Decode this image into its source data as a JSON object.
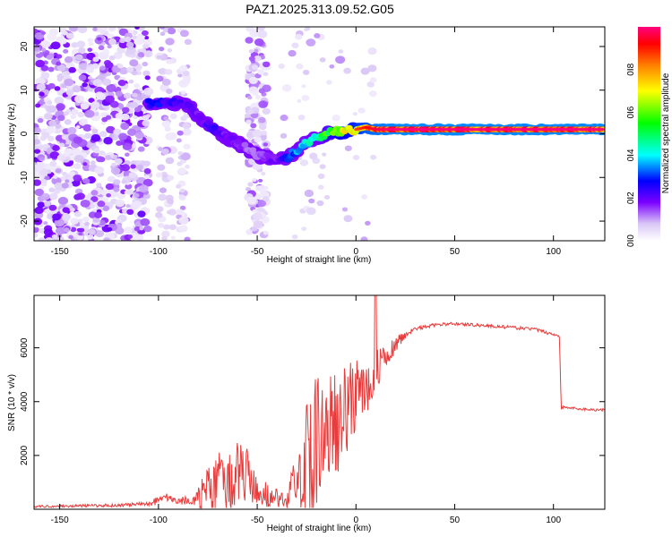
{
  "figure": {
    "title": "PAZ1.2025.313.09.52.G05"
  },
  "chart_data": [
    {
      "type": "heatmap",
      "title": "PAZ1.2025.313.09.52.G05",
      "xlabel": "Height of straight line (km)",
      "ylabel": "Frequency (Hz)",
      "xlim": [
        -163,
        126
      ],
      "ylim": [
        -24.5,
        24.5
      ],
      "x_ticks": [
        -150,
        -100,
        -50,
        0,
        50,
        100
      ],
      "y_ticks": [
        -20,
        -10,
        0,
        10,
        20
      ],
      "colorbar": {
        "label": "Normalized spectral amplitude",
        "range": [
          0,
          1
        ],
        "ticks": [
          0.0,
          0.2,
          0.4,
          0.6,
          0.8
        ],
        "tick_labels": [
          "0.0",
          "0.2",
          "0.4",
          "0.6",
          "0.8"
        ]
      },
      "ridge": {
        "x": [
          -105,
          -100,
          -95,
          -90,
          -85,
          -80,
          -75,
          -70,
          -65,
          -60,
          -55,
          -50,
          -45,
          -40,
          -35,
          -30,
          -25,
          -20,
          -15,
          -10,
          -5,
          0,
          5,
          10,
          20,
          40,
          60,
          80,
          100,
          126
        ],
        "y": [
          7,
          7,
          7,
          7,
          6.5,
          4,
          2,
          0.5,
          -1,
          -2,
          -3.5,
          -5,
          -5.5,
          -6,
          -5.5,
          -4,
          -2,
          -1,
          0,
          0.5,
          0.5,
          1,
          1.5,
          1,
          1,
          1,
          1,
          1,
          1,
          1
        ],
        "amplitude": [
          0.3,
          0.3,
          0.25,
          0.25,
          0.25,
          0.2,
          0.25,
          0.25,
          0.2,
          0.2,
          0.15,
          0.15,
          0.2,
          0.2,
          0.3,
          0.4,
          0.45,
          0.5,
          0.6,
          0.75,
          0.8,
          0.85,
          0.9,
          0.95,
          0.98,
          0.98,
          0.98,
          0.98,
          0.98,
          0.98
        ]
      }
    },
    {
      "type": "line",
      "xlabel": "Height of straight line (km)",
      "ylabel": "SNR (10 * v/v)",
      "xlim": [
        -163,
        126
      ],
      "ylim": [
        0,
        7950
      ],
      "x_ticks": [
        -150,
        -100,
        -50,
        0,
        50,
        100
      ],
      "y_ticks": [
        2000,
        4000,
        6000
      ],
      "series": [
        {
          "name": "SNR",
          "color": "#e83c3c",
          "x": [
            -163,
            -120,
            -105,
            -100,
            -98,
            -90,
            -80,
            -75,
            -70,
            -65,
            -60,
            -55,
            -50,
            -45,
            -40,
            -35,
            -32,
            -30,
            -25,
            -20,
            -15,
            -10,
            -5,
            0,
            5,
            10,
            15,
            20,
            25,
            30,
            40,
            50,
            60,
            70,
            80,
            90,
            100,
            103,
            104,
            105,
            110,
            120,
            126
          ],
          "y": [
            100,
            150,
            200,
            350,
            500,
            300,
            400,
            800,
            900,
            1100,
            1200,
            1300,
            900,
            500,
            400,
            250,
            1200,
            800,
            1800,
            2500,
            3000,
            3200,
            3700,
            4200,
            4600,
            5100,
            5700,
            6100,
            6500,
            6700,
            6850,
            6900,
            6850,
            6800,
            6750,
            6700,
            6500,
            6450,
            3700,
            3800,
            3750,
            3700,
            3700
          ],
          "noise": [
            80,
            120,
            150,
            400,
            300,
            250,
            500,
            900,
            1300,
            1500,
            1500,
            1100,
            800,
            500,
            400,
            300,
            600,
            700,
            2500,
            2700,
            2400,
            2200,
            1800,
            1600,
            1300,
            900,
            500,
            300,
            200,
            150,
            120,
            120,
            120,
            120,
            120,
            120,
            120,
            120,
            120,
            100,
            100,
            100,
            100
          ]
        }
      ]
    }
  ]
}
